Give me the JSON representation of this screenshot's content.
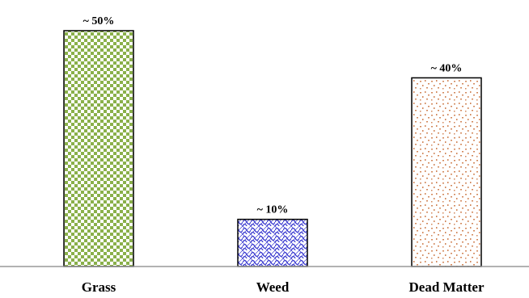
{
  "chart_data": {
    "type": "bar",
    "categories": [
      "Grass",
      "Weed",
      "Dead Matter"
    ],
    "values": [
      50,
      10,
      40
    ],
    "data_labels": [
      "~ 50%",
      "~ 10%",
      "~ 40%"
    ],
    "patterns": [
      "checker",
      "crosshatch",
      "speckle"
    ],
    "colors": [
      "#8ab04a",
      "#3b3bd0",
      "#d2875a"
    ],
    "ylim": [
      0,
      50
    ],
    "grid": false,
    "legend": "none"
  }
}
